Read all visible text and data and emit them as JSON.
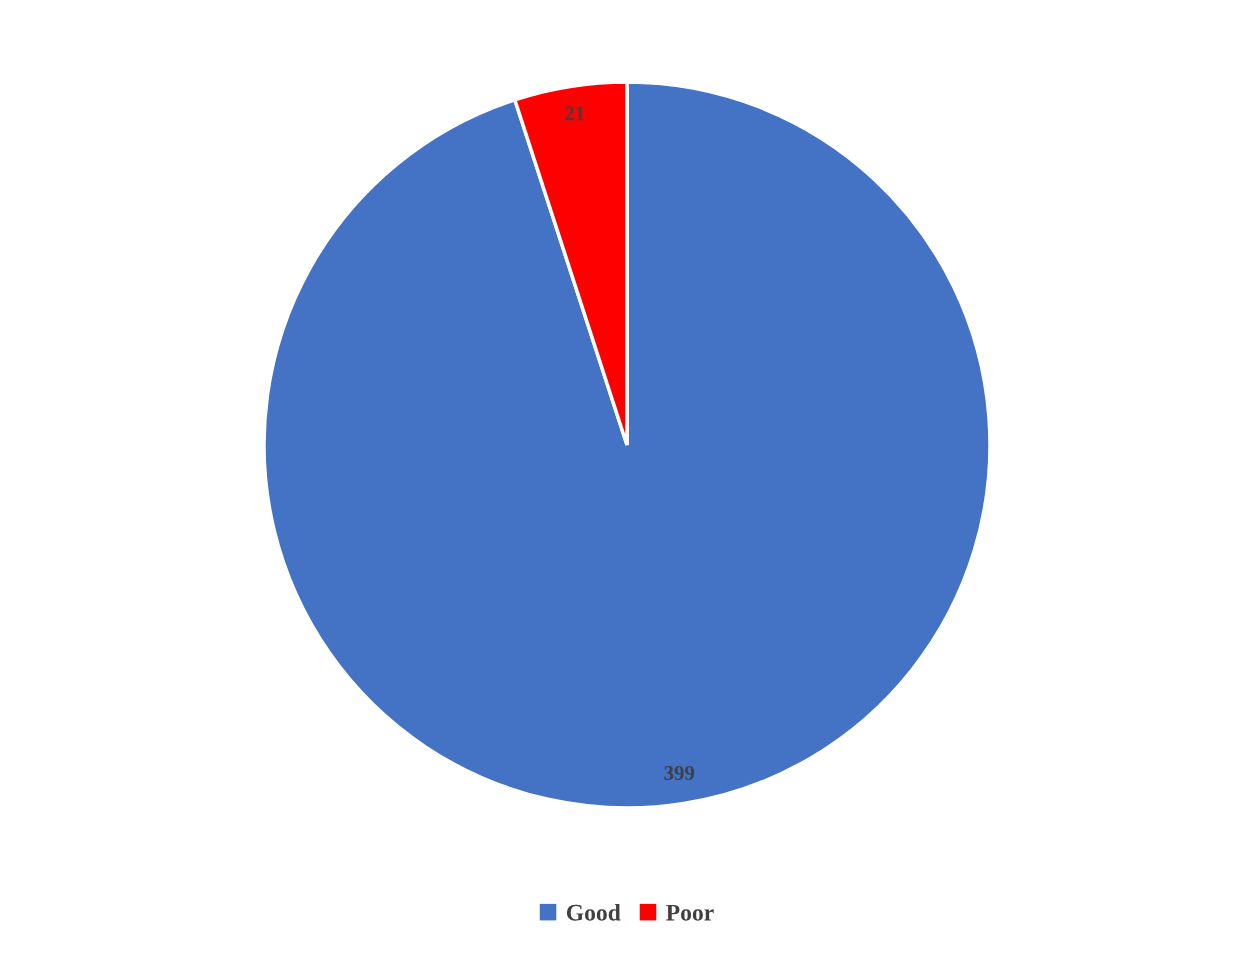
{
  "chart_data": {
    "type": "pie",
    "categories": [
      "Good",
      "Poor"
    ],
    "values": [
      399,
      21
    ],
    "colors": [
      "#4472c4",
      "#ff0000"
    ],
    "data_labels": true,
    "legend": "bottom"
  }
}
